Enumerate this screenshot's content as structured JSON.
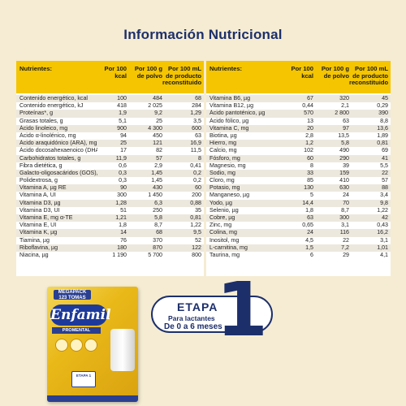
{
  "title": "Información Nutricional",
  "left_table": {
    "headers": [
      "Nutrientes:",
      "Por 100 kcal",
      "Por 100 g de polvo",
      "Por 100 mL de producto reconstituido"
    ],
    "rows": [
      [
        "Contenido energético, kcal",
        "100",
        "484",
        "68"
      ],
      [
        "Contenido energético, kJ",
        "418",
        "2 025",
        "284"
      ],
      [
        "Proteínas*, g",
        "1,9",
        "9,2",
        "1,29"
      ],
      [
        "Grasas totales, g",
        "5,1",
        "25",
        "3,5"
      ],
      [
        "Ácido linoleico, mg",
        "900",
        "4 300",
        "600"
      ],
      [
        "Ácido α-linolénico, mg",
        "94",
        "450",
        "63"
      ],
      [
        "Ácido araquidónico (ARA), mg",
        "25",
        "121",
        "16,9"
      ],
      [
        "Ácido docosahexaenoico (DHA), mg",
        "17",
        "82",
        "11,5"
      ],
      [
        "Carbohidratos totales, g",
        "11,9",
        "57",
        "8"
      ],
      [
        "Fibra dietética, g",
        "0,6",
        "2,9",
        "0,41"
      ],
      [
        "Galacto-oligosacáridos (GOS), g",
        "0,3",
        "1,45",
        "0,2"
      ],
      [
        "Polidextrosa, g",
        "0,3",
        "1,45",
        "0,2"
      ],
      [
        "Vitamina A, µg RE",
        "90",
        "430",
        "60"
      ],
      [
        "Vitamina A, UI",
        "300",
        "1 450",
        "200"
      ],
      [
        "Vitamina D3, µg",
        "1,28",
        "6,3",
        "0,88"
      ],
      [
        "Vitamina D3, UI",
        "51",
        "250",
        "35"
      ],
      [
        "Vitamina E, mg α-TE",
        "1,21",
        "5,8",
        "0,81"
      ],
      [
        "Vitamina E, UI",
        "1,8",
        "8,7",
        "1,22"
      ],
      [
        "Vitamina K, µg",
        "14",
        "68",
        "9,5"
      ],
      [
        "Tiamina, µg",
        "76",
        "370",
        "52"
      ],
      [
        "Riboflavina, µg",
        "180",
        "870",
        "122"
      ],
      [
        "Niacina, µg",
        "1 190",
        "5 700",
        "800"
      ]
    ]
  },
  "right_table": {
    "headers": [
      "Nutrientes:",
      "Por 100 kcal",
      "Por 100 g de polvo",
      "Por 100 mL de producto reconstituido"
    ],
    "rows": [
      [
        "Vitamina B6, µg",
        "67",
        "320",
        "45"
      ],
      [
        "Vitamina B12, µg",
        "0,44",
        "2,1",
        "0,29"
      ],
      [
        "Ácido pantoténico, µg",
        "570",
        "2 800",
        "390"
      ],
      [
        "Ácido fólico, µg",
        "13",
        "63",
        "8,8"
      ],
      [
        "Vitamina C, mg",
        "20",
        "97",
        "13,6"
      ],
      [
        "Biotina, µg",
        "2,8",
        "13,5",
        "1,89"
      ],
      [
        "Hierro, mg",
        "1,2",
        "5,8",
        "0,81"
      ],
      [
        "Calcio, mg",
        "102",
        "490",
        "69"
      ],
      [
        "Fósforo, mg",
        "60",
        "290",
        "41"
      ],
      [
        "Magnesio, mg",
        "8",
        "39",
        "5,5"
      ],
      [
        "Sodio, mg",
        "33",
        "159",
        "22"
      ],
      [
        "Cloro, mg",
        "85",
        "410",
        "57"
      ],
      [
        "Potasio, mg",
        "130",
        "630",
        "88"
      ],
      [
        "Manganeso, µg",
        "5",
        "24",
        "3,4"
      ],
      [
        "Yodo, µg",
        "14,4",
        "70",
        "9,8"
      ],
      [
        "Selenio, µg",
        "1,8",
        "8,7",
        "1,22"
      ],
      [
        "Cobre, µg",
        "63",
        "300",
        "42"
      ],
      [
        "Zinc, mg",
        "0,65",
        "3,1",
        "0,43"
      ],
      [
        "Colina, mg",
        "24",
        "116",
        "16,2"
      ],
      [
        "Inositol, mg",
        "4,5",
        "22",
        "3,1"
      ],
      [
        "L-carnitina, mg",
        "1,5",
        "7,2",
        "1,01"
      ],
      [
        "Taurina, mg",
        "6",
        "29",
        "4,1"
      ]
    ]
  },
  "product": {
    "badge": "MEGAPACK 123 TOMAS",
    "brand": "Enfamil",
    "line": "PROMENTAL",
    "stage_label": "ETAPA 1"
  },
  "stage": {
    "title": "ETAPA",
    "subtitle1": "Para lactantes",
    "subtitle2": "De 0 a 6 meses",
    "number": "1"
  },
  "colors": {
    "background": "#f5ecd3",
    "header_yellow": "#f4c500",
    "navy": "#1d2f6b"
  }
}
